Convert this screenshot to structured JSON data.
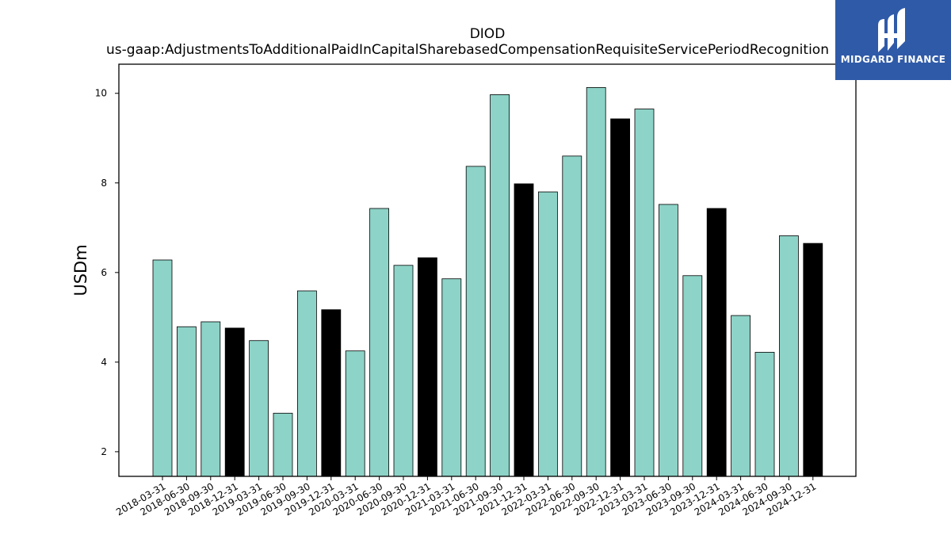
{
  "chart_data": {
    "type": "bar",
    "title": "DIOD",
    "subtitle": "us-gaap:AdjustmentsToAdditionalPaidInCapitalSharebasedCompensationRequisiteServicePeriodRecognition",
    "xlabel": "",
    "ylabel": "USDm",
    "ylim": [
      1.45,
      10.65
    ],
    "yticks": [
      2,
      4,
      6,
      8,
      10
    ],
    "grid": false,
    "categories": [
      "2018-03-31",
      "2018-06-30",
      "2018-09-30",
      "2018-12-31",
      "2019-03-31",
      "2019-06-30",
      "2019-09-30",
      "2019-12-31",
      "2020-03-31",
      "2020-06-30",
      "2020-09-30",
      "2020-12-31",
      "2021-03-31",
      "2021-06-30",
      "2021-09-30",
      "2021-12-31",
      "2022-03-31",
      "2022-06-30",
      "2022-09-30",
      "2022-12-31",
      "2023-03-31",
      "2023-06-30",
      "2023-09-30",
      "2023-12-31",
      "2024-03-31",
      "2024-06-30",
      "2024-09-30",
      "2024-12-31"
    ],
    "values": [
      6.28,
      4.79,
      4.9,
      4.76,
      4.48,
      2.86,
      5.59,
      5.17,
      4.25,
      7.43,
      6.16,
      6.33,
      5.86,
      8.37,
      9.97,
      7.98,
      7.8,
      8.6,
      10.13,
      9.43,
      9.65,
      7.52,
      5.93,
      7.43,
      5.04,
      4.22,
      6.82,
      6.65
    ],
    "colors": {
      "quarter": "#8dd3c7",
      "year_end": "#000000",
      "edge": "#000000"
    }
  },
  "logo": {
    "text": "MIDGARD FINANCE",
    "background": "#2f5aa8"
  }
}
